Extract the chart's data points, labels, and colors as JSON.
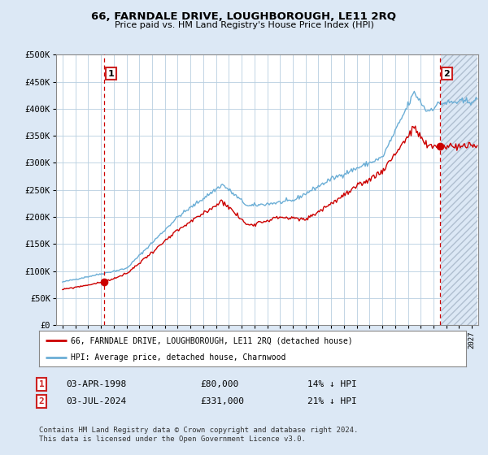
{
  "title": "66, FARNDALE DRIVE, LOUGHBOROUGH, LE11 2RQ",
  "subtitle": "Price paid vs. HM Land Registry's House Price Index (HPI)",
  "ylabel_ticks": [
    "£0",
    "£50K",
    "£100K",
    "£150K",
    "£200K",
    "£250K",
    "£300K",
    "£350K",
    "£400K",
    "£450K",
    "£500K"
  ],
  "ytick_values": [
    0,
    50000,
    100000,
    150000,
    200000,
    250000,
    300000,
    350000,
    400000,
    450000,
    500000
  ],
  "xlim_start": 1994.5,
  "xlim_end": 2027.5,
  "ylim_min": 0,
  "ylim_max": 500000,
  "hpi_color": "#6baed6",
  "price_color": "#cc0000",
  "point1_year": 1998.25,
  "point1_price": 80000,
  "point2_year": 2024.5,
  "point2_price": 331000,
  "legend_label1": "66, FARNDALE DRIVE, LOUGHBOROUGH, LE11 2RQ (detached house)",
  "legend_label2": "HPI: Average price, detached house, Charnwood",
  "table_row1": [
    "1",
    "03-APR-1998",
    "£80,000",
    "14% ↓ HPI"
  ],
  "table_row2": [
    "2",
    "03-JUL-2024",
    "£331,000",
    "21% ↓ HPI"
  ],
  "footer": "Contains HM Land Registry data © Crown copyright and database right 2024.\nThis data is licensed under the Open Government Licence v3.0.",
  "bg_color": "#dce8f5",
  "plot_bg_color": "#dce8f5",
  "inner_plot_color": "#ffffff",
  "grid_color": "#b8cfe0",
  "hatch_color": "#b0bfd0"
}
